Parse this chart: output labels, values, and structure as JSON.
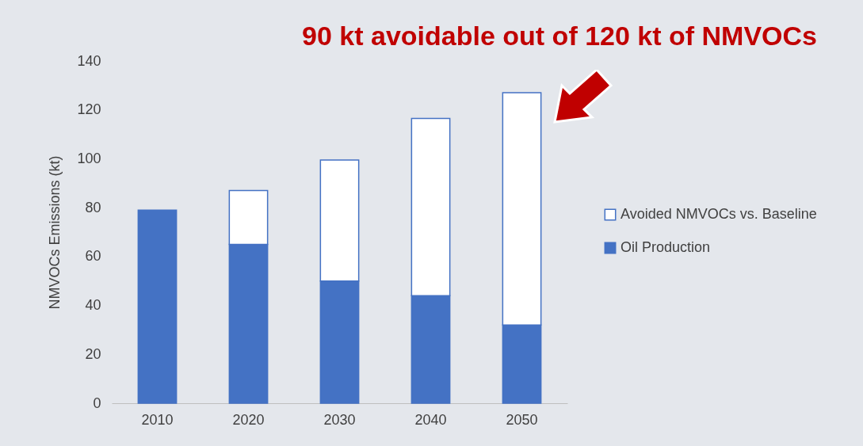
{
  "chart_data": {
    "type": "bar",
    "title": "90 kt avoidable out of 120 kt of NMVOCs",
    "ylabel": "NMVOCs Emissions (kt)",
    "categories": [
      "2010",
      "2020",
      "2030",
      "2040",
      "2050"
    ],
    "stacked": true,
    "series": [
      {
        "name": "Oil Production",
        "color": "#4472c4",
        "values": [
          79,
          65,
          50,
          44,
          32
        ]
      },
      {
        "name": "Avoided NMVOCs vs. Baseline",
        "color": "#ffffff",
        "values": [
          null,
          22,
          49.5,
          72.5,
          95
        ]
      }
    ],
    "ylim": [
      0,
      140
    ],
    "yticks": [
      0,
      20,
      40,
      60,
      80,
      100,
      120,
      140
    ],
    "grid": false,
    "legend": "right"
  }
}
